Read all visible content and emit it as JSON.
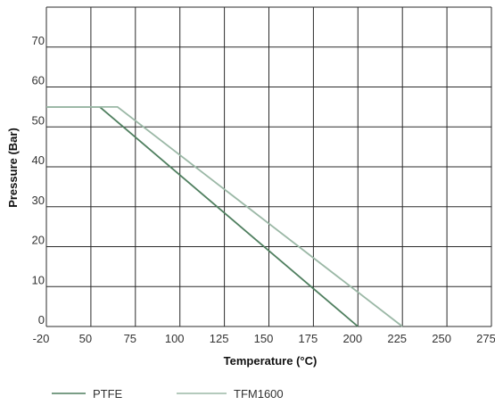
{
  "chart_data": {
    "type": "line",
    "xlabel": "Temperature (°C)",
    "ylabel": "Pressure (Bar)",
    "x_ticks": [
      "-20",
      "50",
      "75",
      "100",
      "125",
      "150",
      "175",
      "200",
      "225",
      "250",
      "275"
    ],
    "y_ticks": [
      "0",
      "10",
      "20",
      "30",
      "40",
      "50",
      "60",
      "70"
    ],
    "ylim": [
      0,
      80
    ],
    "grid": true,
    "legend_position": "bottom",
    "series": [
      {
        "name": "PTFE",
        "color": "#4f7f5f",
        "points": [
          {
            "x": -20,
            "y": 55
          },
          {
            "x": 55,
            "y": 55
          },
          {
            "x": 200,
            "y": 0
          }
        ]
      },
      {
        "name": "TFM1600",
        "color": "#9bb8a6",
        "points": [
          {
            "x": -20,
            "y": 55
          },
          {
            "x": 65,
            "y": 55
          },
          {
            "x": 225,
            "y": 0
          }
        ]
      }
    ]
  }
}
